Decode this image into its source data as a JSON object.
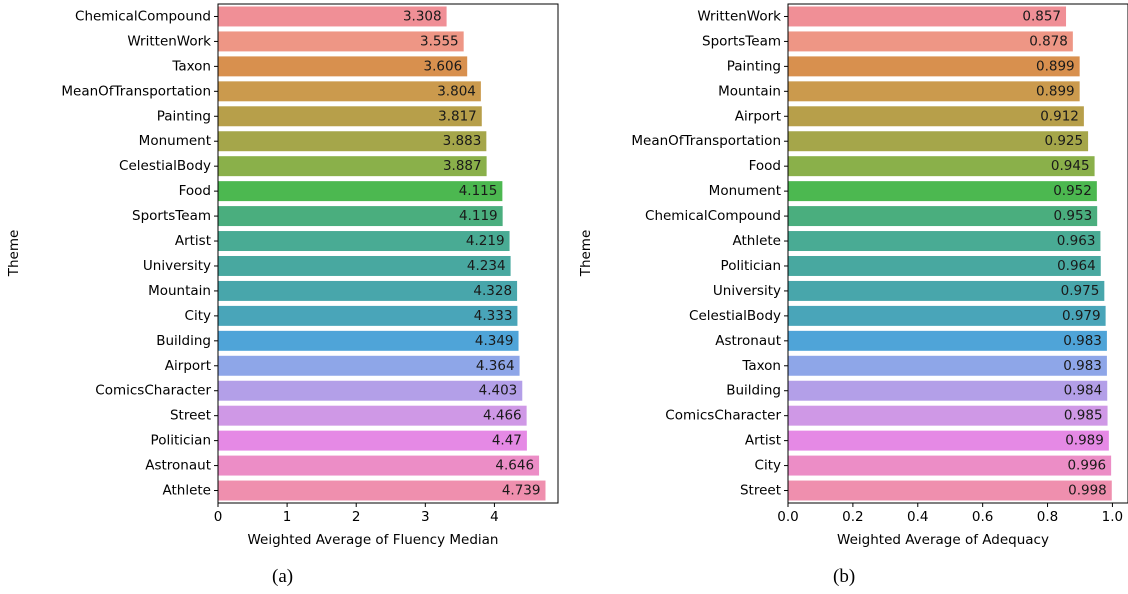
{
  "chart_data": [
    {
      "type": "bar",
      "orientation": "horizontal",
      "ylabel": "Theme",
      "xlabel": "Weighted Average of Fluency Median",
      "xlim": [
        0,
        4.92
      ],
      "xticks": [
        "0",
        "1",
        "2",
        "3",
        "4"
      ],
      "grid": false,
      "data_labels": true,
      "caption": "(a)",
      "categories": [
        "ChemicalCompound",
        "WrittenWork",
        "Taxon",
        "MeanOfTransportation",
        "Painting",
        "Monument",
        "CelestialBody",
        "Food",
        "SportsTeam",
        "Artist",
        "University",
        "Mountain",
        "City",
        "Building",
        "Airport",
        "ComicsCharacter",
        "Street",
        "Politician",
        "Astronaut",
        "Athlete"
      ],
      "values": [
        3.308,
        3.555,
        3.606,
        3.804,
        3.817,
        3.883,
        3.887,
        4.115,
        4.119,
        4.219,
        4.234,
        4.328,
        4.333,
        4.349,
        4.364,
        4.403,
        4.466,
        4.47,
        4.646,
        4.739
      ],
      "value_labels": [
        "3.308",
        "3.555",
        "3.606",
        "3.804",
        "3.817",
        "3.883",
        "3.887",
        "4.115",
        "4.119",
        "4.219",
        "4.234",
        "4.328",
        "4.333",
        "4.349",
        "4.364",
        "4.403",
        "4.466",
        "4.47",
        "4.646",
        "4.739"
      ]
    },
    {
      "type": "bar",
      "orientation": "horizontal",
      "ylabel": "Theme",
      "xlabel": "Weighted Average of Adequacy",
      "xlim": [
        0,
        1.048
      ],
      "xticks": [
        "0.0",
        "0.2",
        "0.4",
        "0.6",
        "0.8",
        "1.0"
      ],
      "grid": false,
      "data_labels": true,
      "caption": "(b)",
      "categories": [
        "WrittenWork",
        "SportsTeam",
        "Painting",
        "Mountain",
        "Airport",
        "MeanOfTransportation",
        "Food",
        "Monument",
        "ChemicalCompound",
        "Athlete",
        "Politician",
        "University",
        "CelestialBody",
        "Astronaut",
        "Taxon",
        "Building",
        "ComicsCharacter",
        "Artist",
        "City",
        "Street"
      ],
      "values": [
        0.857,
        0.878,
        0.899,
        0.899,
        0.912,
        0.925,
        0.945,
        0.952,
        0.953,
        0.963,
        0.964,
        0.975,
        0.979,
        0.983,
        0.983,
        0.984,
        0.985,
        0.989,
        0.996,
        0.998
      ],
      "value_labels": [
        "0.857",
        "0.878",
        "0.899",
        "0.899",
        "0.912",
        "0.925",
        "0.945",
        "0.952",
        "0.953",
        "0.963",
        "0.964",
        "0.975",
        "0.979",
        "0.983",
        "0.983",
        "0.984",
        "0.985",
        "0.989",
        "0.996",
        "0.998"
      ]
    }
  ],
  "palette": [
    "#f08f96",
    "#ee9685",
    "#d8904e",
    "#cb9a4d",
    "#b79f4a",
    "#a5a64a",
    "#8ab04a",
    "#4cb850",
    "#4aae7e",
    "#49ab94",
    "#48a8a0",
    "#48a6ab",
    "#49a5b9",
    "#4fa4d8",
    "#8ea6e8",
    "#b39fe8",
    "#cf98e6",
    "#e589e5",
    "#ec8dc6",
    "#ef8fae"
  ]
}
